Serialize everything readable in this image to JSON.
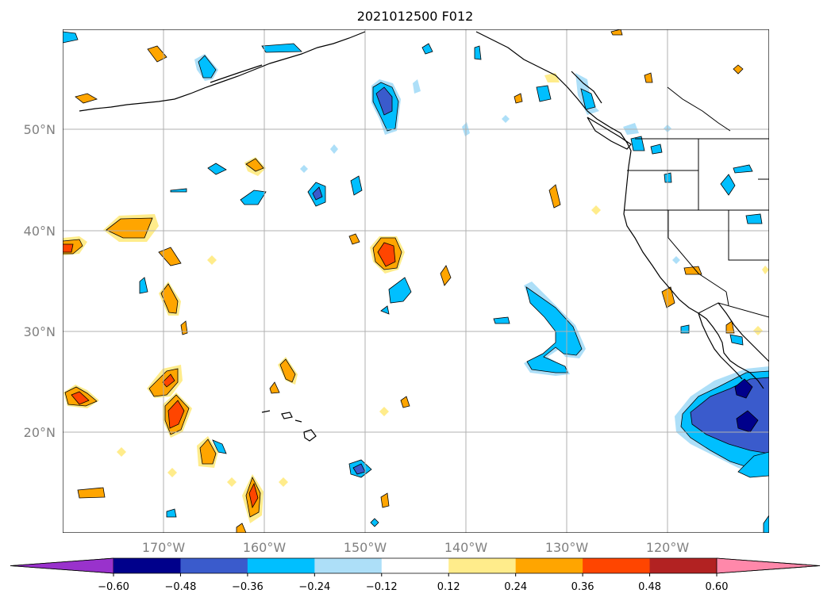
{
  "title": "2021012500 F012",
  "colors": {
    "grid": "#b0b0b0",
    "coast": "#000000",
    "tick_label": "#808080"
  },
  "latitude_labels": [
    "50°N",
    "40°N",
    "30°N",
    "20°N"
  ],
  "longitude_labels": [
    "170°W",
    "160°W",
    "150°W",
    "140°W",
    "130°W",
    "120°W"
  ],
  "colorbar": {
    "bins": [
      {
        "color": "#9932CC"
      },
      {
        "color": "#00008B"
      },
      {
        "color": "#3A5BCC"
      },
      {
        "color": "#00BFFF"
      },
      {
        "color": "#ADDFF8"
      },
      {
        "color": "#FFFFFF"
      },
      {
        "color": "#FFEC8B"
      },
      {
        "color": "#FFA500"
      },
      {
        "color": "#FF4500"
      },
      {
        "color": "#B22222"
      },
      {
        "color": "#FF88AA"
      }
    ],
    "tick_labels": [
      "−0.60",
      "−0.48",
      "−0.36",
      "−0.24",
      "−0.12",
      "0.12",
      "0.24",
      "0.36",
      "0.48",
      "0.60"
    ]
  }
}
